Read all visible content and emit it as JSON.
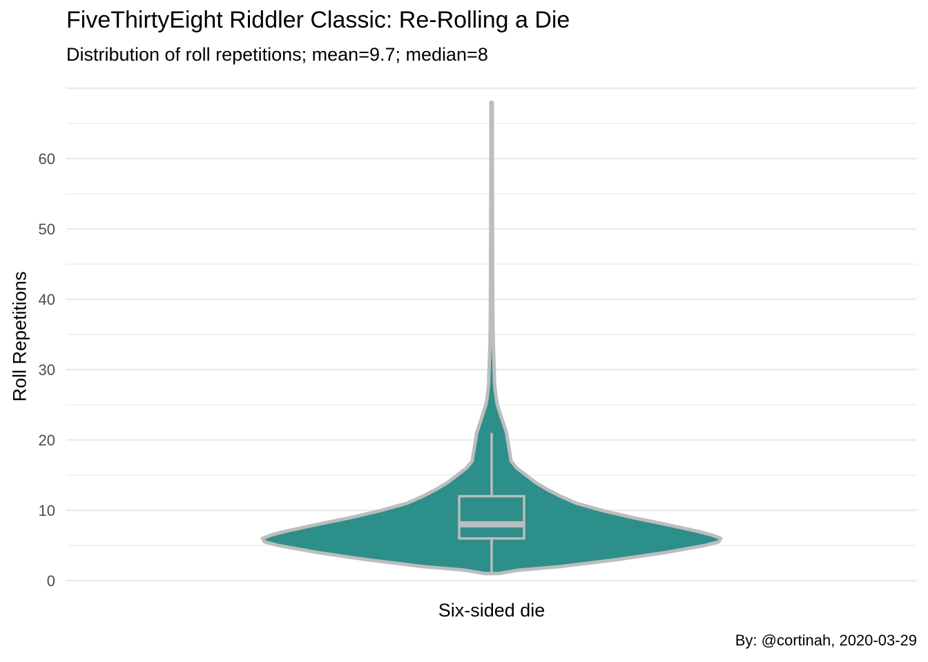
{
  "chart_data": {
    "type": "violin",
    "title": "FiveThirtyEight Riddler Classic: Re-Rolling a Die",
    "subtitle": "Distribution of roll repetitions; mean=9.7; median=8",
    "caption": "By: @cortinah, 2020-03-29",
    "xlabel": "",
    "ylabel": "Roll Repetitions",
    "categories": [
      "Six-sided die"
    ],
    "y_ticks": [
      0,
      10,
      20,
      30,
      40,
      50,
      60
    ],
    "ylim": [
      0,
      70
    ],
    "grid": true,
    "legend": "none",
    "summary": {
      "mean": 9.7,
      "median": 8
    },
    "boxplot": {
      "min": 1,
      "q1": 6,
      "median": 8,
      "q3": 12,
      "whisker_high": 21
    },
    "violin_max": 68,
    "density_profile": {
      "y": [
        1,
        1.5,
        2,
        3,
        4,
        5,
        5.5,
        6,
        6.5,
        7,
        8,
        9,
        10,
        11,
        12,
        13,
        14,
        15,
        16,
        17,
        18,
        19,
        20,
        21,
        22,
        23,
        24,
        25,
        26,
        27,
        28,
        30,
        32,
        34,
        36,
        40,
        50,
        60,
        68
      ],
      "width": [
        0.03,
        0.12,
        0.3,
        0.55,
        0.76,
        0.93,
        0.99,
        1.0,
        0.96,
        0.9,
        0.76,
        0.61,
        0.48,
        0.37,
        0.3,
        0.24,
        0.19,
        0.15,
        0.11,
        0.085,
        0.08,
        0.075,
        0.07,
        0.065,
        0.055,
        0.045,
        0.035,
        0.025,
        0.02,
        0.016,
        0.013,
        0.011,
        0.009,
        0.007,
        0.006,
        0.005,
        0.004,
        0.003,
        0.003
      ]
    },
    "colors": {
      "fill": "#2C8F89",
      "outline": "#BDBDBD",
      "box": "#BDBDBD",
      "grid": "#EBEBEB",
      "tick_text": "#4D4D4D"
    }
  }
}
